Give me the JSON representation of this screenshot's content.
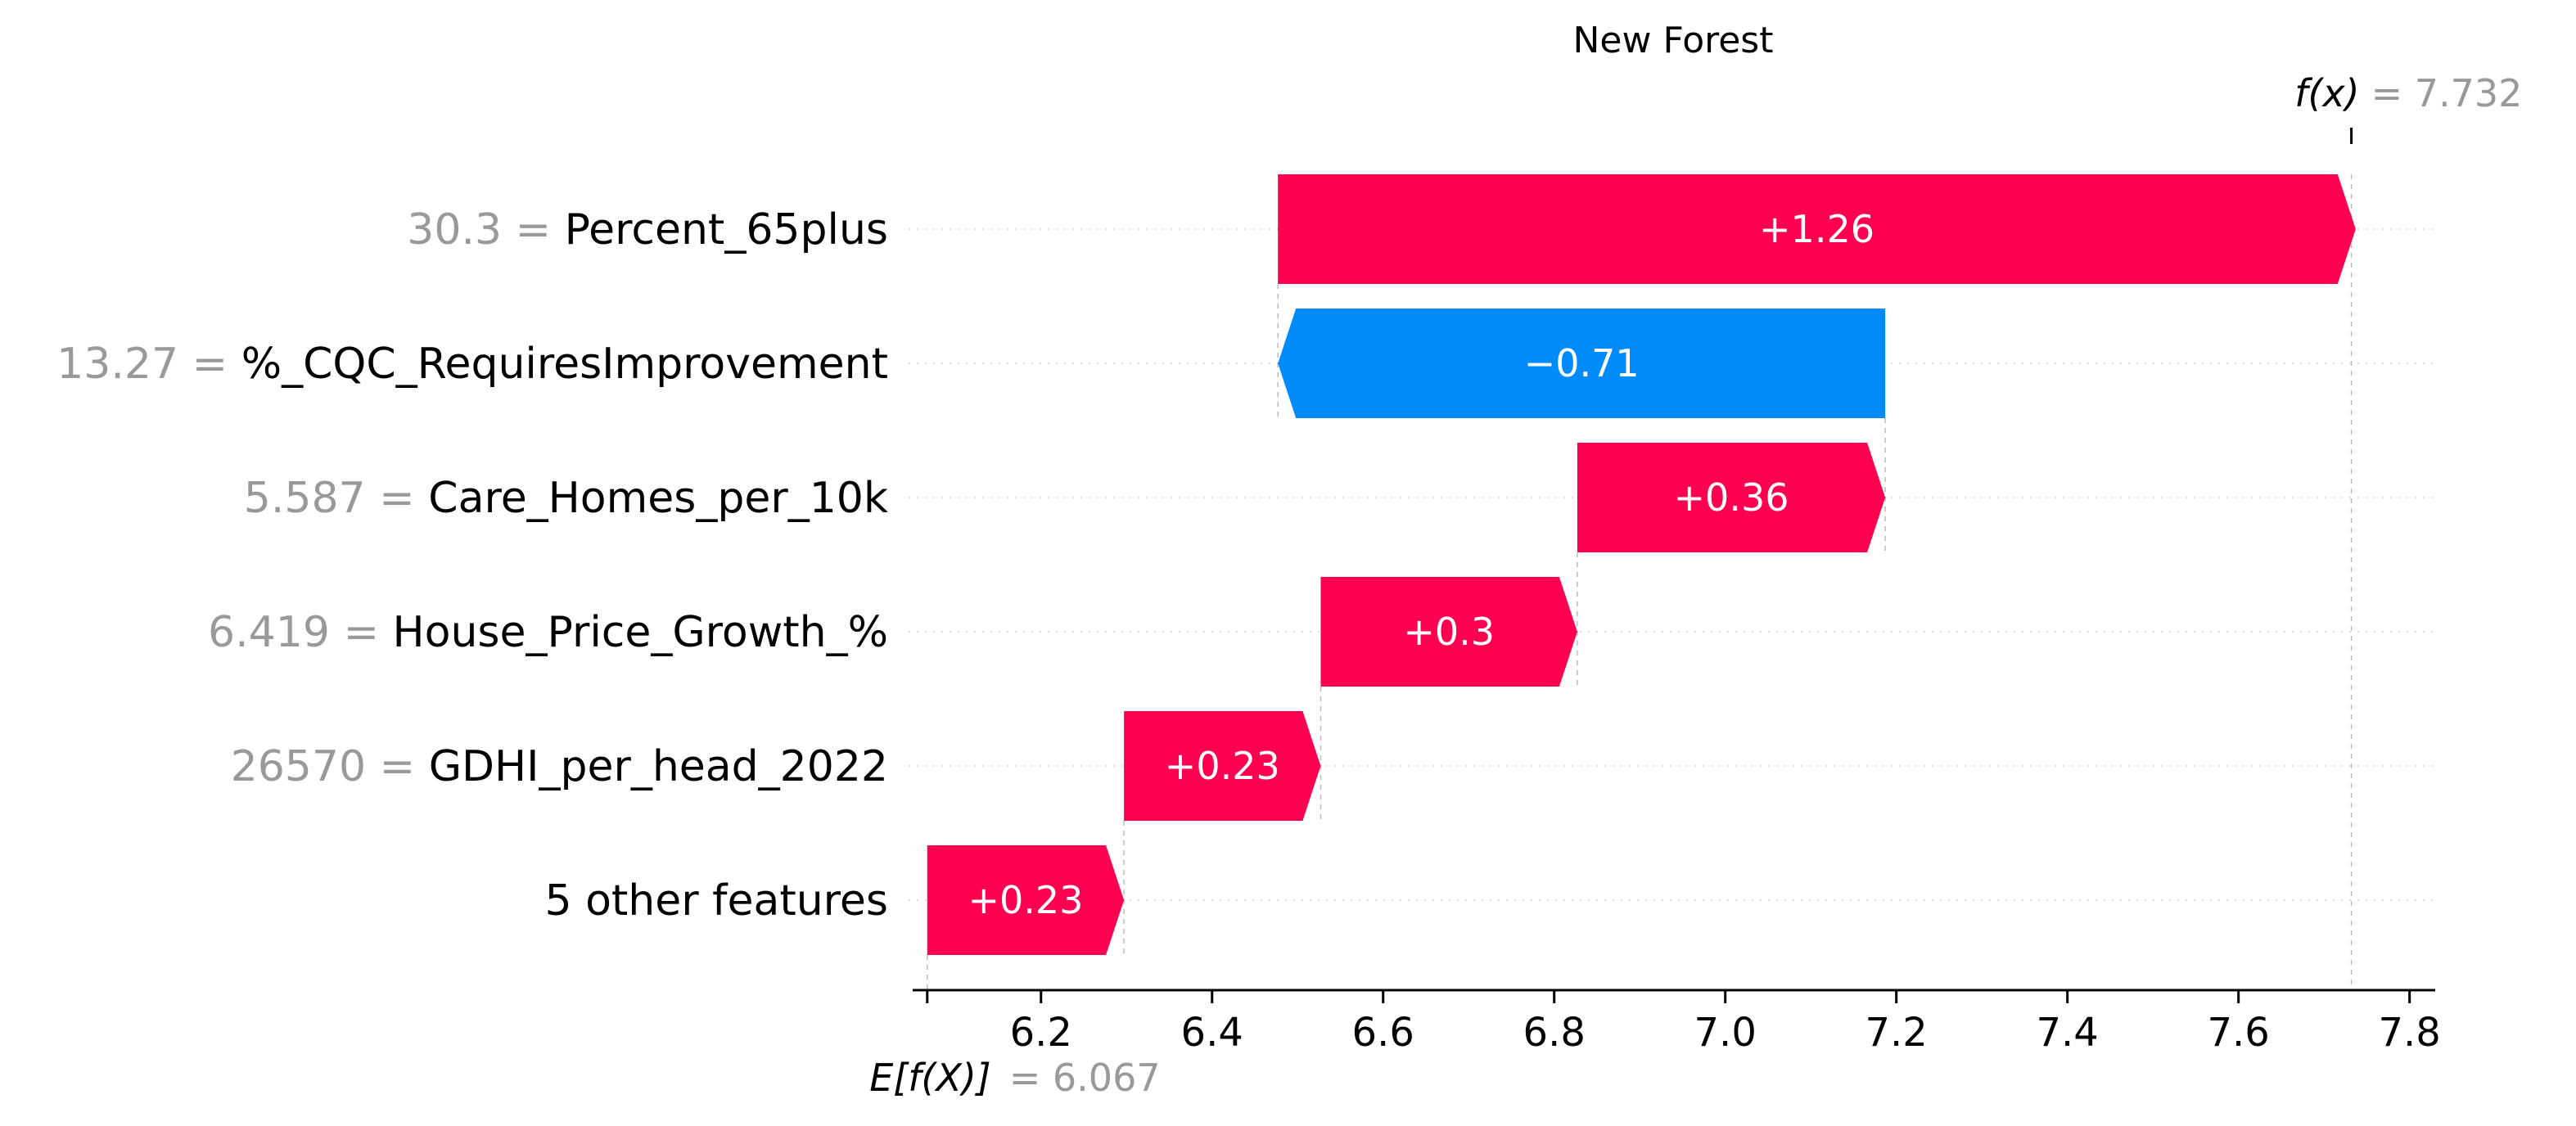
{
  "chart_data": {
    "type": "waterfall",
    "title": "New Forest",
    "base_value": 6.067,
    "base_label": "E[f(X)]",
    "base_value_text": "= 6.067",
    "output_value": 7.732,
    "output_label": "f(x)",
    "output_value_text": "= 7.732",
    "xlim": [
      6.05,
      7.83
    ],
    "x_ticks": [
      "6.2",
      "6.4",
      "6.6",
      "6.8",
      "7.0",
      "7.2",
      "7.4",
      "7.6",
      "7.8"
    ],
    "x_tick_values": [
      6.2,
      6.4,
      6.6,
      6.8,
      7.0,
      7.2,
      7.4,
      7.6,
      7.8
    ],
    "positive_color": "#ff0051",
    "negative_color": "#008bfb",
    "features": [
      {
        "value": "30.3",
        "name": "Percent_65plus",
        "contribution": 1.26,
        "label": "+1.26"
      },
      {
        "value": "13.27",
        "name": "%_CQC_RequiresImprovement",
        "contribution": -0.71,
        "label": "−0.71"
      },
      {
        "value": "5.587",
        "name": "Care_Homes_per_10k",
        "contribution": 0.36,
        "label": "+0.36"
      },
      {
        "value": "6.419",
        "name": "House_Price_Growth_%",
        "contribution": 0.3,
        "label": "+0.3"
      },
      {
        "value": "26570",
        "name": "GDHI_per_head_2022",
        "contribution": 0.23,
        "label": "+0.23"
      },
      {
        "value": "",
        "name": "5 other features",
        "contribution": 0.23,
        "label": "+0.23"
      }
    ]
  }
}
